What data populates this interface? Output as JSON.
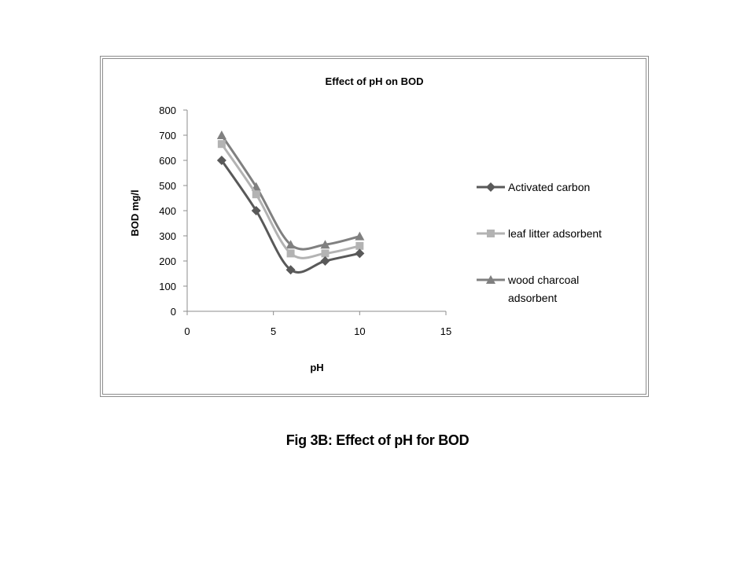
{
  "chart_data": {
    "type": "line",
    "title": "Effect of pH on BOD",
    "xlabel": "pH",
    "ylabel": "BOD mg/l",
    "xlim": [
      0,
      15
    ],
    "ylim": [
      0,
      800
    ],
    "xticks": [
      "0",
      "5",
      "10",
      "15"
    ],
    "yticks": [
      "0",
      "100",
      "200",
      "300",
      "400",
      "500",
      "600",
      "700",
      "800"
    ],
    "grid": false,
    "legend_position": "right",
    "series": [
      {
        "name": "Activated carbon",
        "marker": "diamond",
        "color": "#595959",
        "x": [
          2,
          4,
          6,
          8,
          10
        ],
        "values": [
          600,
          400,
          165,
          200,
          230
        ]
      },
      {
        "name": "leaf litter adsorbent",
        "marker": "square",
        "color": "#b3b3b3",
        "x": [
          2,
          4,
          6,
          8,
          10
        ],
        "values": [
          665,
          465,
          230,
          230,
          260
        ]
      },
      {
        "name": "wood charcoal adsorbent",
        "marker": "triangle",
        "color": "#808080",
        "x": [
          2,
          4,
          6,
          8,
          10
        ],
        "values": [
          700,
          495,
          265,
          265,
          298
        ]
      }
    ]
  },
  "caption": "Fig 3B: Effect of pH for BOD"
}
